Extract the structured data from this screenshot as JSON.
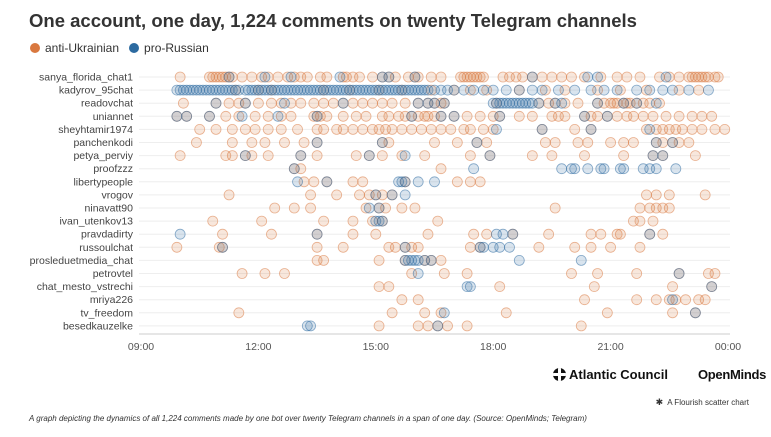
{
  "chart_data": {
    "type": "scatter",
    "title": "One account, one day, 1,224 comments on twenty Telegram channels",
    "legend": [
      {
        "name": "anti-Ukrainian",
        "color": "#d9783f"
      },
      {
        "name": "pro-Russian",
        "color": "#2c6aa0"
      }
    ],
    "channels": [
      "sanya_florida_chat1",
      "kadyrov_95chat",
      "readovchat",
      "uniannet",
      "sheyhtamir1974",
      "panchenkodi",
      "petya_perviy",
      "proofzzz",
      "libertypeople",
      "vrogov",
      "ninavatt90",
      "ivan_utenkov13",
      "pravdadirty",
      "russoulchat",
      "prosleduetmedia_chat",
      "petrovtel",
      "chat_mesto_vstrechi",
      "mriya226",
      "tv_freedom",
      "besedkauzelke"
    ],
    "x_ticks": [
      "09:00",
      "12:00",
      "15:00",
      "18:00",
      "21:00",
      "00:00"
    ],
    "xlim": [
      "09:00",
      "00:00"
    ],
    "series": [
      {
        "name": "anti-Ukrainian",
        "points": [
          {
            "channel": "sanya_florida_chat1",
            "times": [
              "10:00",
              "10:45",
              "10:50",
              "10:55",
              "11:00",
              "11:05",
              "11:10",
              "11:15",
              "11:20",
              "11:35",
              "11:50",
              "12:05",
              "12:15",
              "12:30",
              "12:45",
              "12:55",
              "13:05",
              "13:15",
              "13:35",
              "13:45",
              "14:10",
              "14:15",
              "14:25",
              "14:35",
              "14:55",
              "15:10",
              "15:20",
              "15:30",
              "15:50",
              "16:00",
              "16:05",
              "16:25",
              "16:40",
              "17:10",
              "17:15",
              "17:20",
              "17:25",
              "17:30",
              "17:35",
              "17:40",
              "17:45",
              "18:15",
              "18:25",
              "18:35",
              "18:45",
              "19:00",
              "19:15",
              "19:30",
              "19:45",
              "20:00",
              "20:20",
              "20:45",
              "21:10",
              "21:25",
              "21:45",
              "22:15",
              "22:30",
              "22:45",
              "23:00",
              "23:05",
              "23:10",
              "23:15",
              "23:20",
              "23:25",
              "23:30",
              "23:40",
              "23:45"
            ]
          },
          {
            "channel": "kadyrov_95chat",
            "times": [
              "11:25",
              "12:00",
              "12:20",
              "13:40",
              "14:20",
              "15:05",
              "15:40",
              "16:25",
              "17:00",
              "17:25",
              "17:50",
              "18:40",
              "19:20",
              "19:50",
              "20:40",
              "21:15",
              "21:55",
              "22:45",
              "23:15"
            ]
          },
          {
            "channel": "readovchat",
            "times": [
              "10:05",
              "10:55",
              "11:15",
              "11:30",
              "11:40",
              "12:00",
              "12:20",
              "12:35",
              "12:50",
              "13:05",
              "13:25",
              "13:40",
              "13:55",
              "14:10",
              "14:25",
              "14:40",
              "14:55",
              "15:10",
              "15:25",
              "15:45",
              "16:05",
              "16:20",
              "16:30",
              "16:40",
              "16:45",
              "18:05",
              "19:10",
              "19:25",
              "19:35",
              "19:50",
              "20:10",
              "20:40",
              "20:50",
              "21:00",
              "21:05",
              "21:10",
              "21:20",
              "21:25",
              "21:30",
              "21:40",
              "21:50",
              "22:00",
              "22:15"
            ]
          },
          {
            "channel": "uniannet",
            "times": [
              "9:55",
              "10:10",
              "10:45",
              "11:10",
              "11:30",
              "11:55",
              "12:15",
              "12:35",
              "12:50",
              "13:25",
              "13:30",
              "13:35",
              "13:45",
              "14:10",
              "14:30",
              "14:45",
              "15:10",
              "15:20",
              "15:35",
              "15:45",
              "15:55",
              "16:05",
              "16:15",
              "16:20",
              "16:30",
              "16:40",
              "17:00",
              "17:20",
              "17:40",
              "18:00",
              "18:10",
              "18:40",
              "19:00",
              "19:30",
              "19:40",
              "19:50",
              "20:20",
              "20:30",
              "20:40",
              "20:55",
              "21:10",
              "21:25",
              "21:35",
              "21:50",
              "22:05",
              "22:25",
              "22:45",
              "23:05",
              "23:20",
              "23:35"
            ]
          },
          {
            "channel": "sheyhtamir1974",
            "times": [
              "10:30",
              "10:55",
              "11:20",
              "11:40",
              "11:55",
              "12:15",
              "12:35",
              "13:00",
              "13:30",
              "13:40",
              "14:00",
              "14:10",
              "14:25",
              "14:40",
              "14:55",
              "15:05",
              "15:15",
              "15:25",
              "15:40",
              "15:55",
              "16:10",
              "16:25",
              "16:40",
              "16:55",
              "17:15",
              "17:25",
              "17:45",
              "18:00",
              "19:15",
              "20:05",
              "20:30",
              "21:55",
              "22:10",
              "22:20",
              "22:30",
              "22:40",
              "22:50",
              "23:05",
              "23:20",
              "23:40",
              "23:55"
            ]
          },
          {
            "channel": "panchenkodi",
            "times": [
              "10:25",
              "11:20",
              "11:50",
              "12:10",
              "12:40",
              "13:10",
              "13:30",
              "15:10",
              "15:20",
              "16:30",
              "17:05",
              "17:35",
              "17:50",
              "19:20",
              "19:35",
              "20:10",
              "20:25",
              "21:00",
              "21:20",
              "21:35",
              "22:10",
              "22:20",
              "22:35",
              "22:45",
              "23:00"
            ]
          },
          {
            "channel": "petya_perviy",
            "times": [
              "10:00",
              "11:10",
              "11:20",
              "11:40",
              "11:50",
              "12:15",
              "13:05",
              "13:30",
              "14:30",
              "14:50",
              "15:10",
              "15:40",
              "16:15",
              "17:25",
              "17:55",
              "19:00",
              "19:30",
              "20:20",
              "21:20",
              "22:05",
              "22:20",
              "23:10"
            ]
          },
          {
            "channel": "proofzzz",
            "times": [
              "12:55",
              "13:05",
              "16:40"
            ]
          },
          {
            "channel": "libertypeople",
            "times": [
              "13:10",
              "13:25",
              "13:45",
              "14:25",
              "14:40",
              "15:45",
              "17:05",
              "17:25",
              "17:40"
            ]
          },
          {
            "channel": "vrogov",
            "times": [
              "11:15",
              "13:20",
              "14:00",
              "14:35",
              "14:50",
              "15:00",
              "15:10",
              "15:25",
              "21:55",
              "22:10",
              "22:30",
              "23:25"
            ]
          },
          {
            "channel": "ninavatt90",
            "times": [
              "12:25",
              "12:55",
              "13:20",
              "14:45",
              "15:05",
              "15:15",
              "15:40",
              "16:00",
              "19:35",
              "21:45",
              "22:00",
              "22:10",
              "22:20",
              "22:30"
            ]
          },
          {
            "channel": "ivan_utenkov13",
            "times": [
              "10:50",
              "12:05",
              "13:40",
              "14:25",
              "14:55",
              "15:10",
              "16:35",
              "21:35",
              "21:45",
              "22:05"
            ]
          },
          {
            "channel": "pravdadirty",
            "times": [
              "11:05",
              "12:20",
              "13:30",
              "14:25",
              "15:00",
              "16:20",
              "17:30",
              "17:50",
              "18:30",
              "19:25",
              "20:30",
              "20:45",
              "21:10",
              "21:15",
              "22:00",
              "22:20"
            ]
          },
          {
            "channel": "russoulchat",
            "times": [
              "9:55",
              "11:00",
              "11:05",
              "13:30",
              "14:10",
              "15:20",
              "15:30",
              "15:45",
              "15:55",
              "16:05",
              "17:25",
              "17:40",
              "19:10",
              "20:05",
              "20:30",
              "21:00",
              "21:45"
            ]
          },
          {
            "channel": "prosleduetmedia_chat",
            "times": [
              "13:30",
              "13:40",
              "15:05",
              "15:45",
              "16:15",
              "16:25",
              "16:40"
            ]
          },
          {
            "channel": "petrovtel",
            "times": [
              "11:35",
              "12:10",
              "12:40",
              "15:55",
              "16:45",
              "17:20",
              "20:00",
              "20:40",
              "21:40",
              "22:45",
              "23:30",
              "23:40"
            ]
          },
          {
            "channel": "chat_mesto_vstrechi",
            "times": [
              "15:05",
              "15:20",
              "18:10",
              "20:35",
              "22:35",
              "23:35"
            ]
          },
          {
            "channel": "mriya226",
            "times": [
              "15:40",
              "16:05",
              "20:20",
              "21:40",
              "22:10",
              "22:30",
              "22:40",
              "22:55",
              "23:15",
              "23:25"
            ]
          },
          {
            "channel": "tv_freedom",
            "times": [
              "11:30",
              "15:25",
              "16:15",
              "16:40",
              "18:20",
              "20:55",
              "22:35",
              "23:10"
            ]
          },
          {
            "channel": "besedkauzelke",
            "times": [
              "15:05",
              "16:05",
              "16:20",
              "16:35",
              "16:50",
              "17:20",
              "20:15"
            ]
          }
        ]
      },
      {
        "name": "pro-Russian",
        "points": [
          {
            "channel": "sanya_florida_chat1",
            "times": [
              "11:15",
              "12:10",
              "12:50",
              "14:05",
              "15:10",
              "15:20",
              "16:00",
              "19:00",
              "20:25",
              "20:40",
              "22:25"
            ]
          },
          {
            "channel": "kadyrov_95chat",
            "times": [
              "9:55",
              "10:00",
              "10:05",
              "10:10",
              "10:15",
              "10:20",
              "10:25",
              "10:30",
              "10:35",
              "10:40",
              "10:45",
              "10:50",
              "10:55",
              "11:00",
              "11:05",
              "11:10",
              "11:15",
              "11:20",
              "11:25",
              "11:30",
              "11:40",
              "11:45",
              "11:50",
              "11:55",
              "12:00",
              "12:05",
              "12:10",
              "12:15",
              "12:20",
              "12:25",
              "12:30",
              "12:35",
              "12:40",
              "12:45",
              "12:50",
              "12:55",
              "13:00",
              "13:05",
              "13:10",
              "13:15",
              "13:20",
              "13:25",
              "13:30",
              "13:35",
              "13:40",
              "13:45",
              "13:50",
              "13:55",
              "14:00",
              "14:05",
              "14:10",
              "14:15",
              "14:20",
              "14:25",
              "14:30",
              "14:35",
              "14:40",
              "14:45",
              "14:50",
              "14:55",
              "15:00",
              "15:05",
              "15:10",
              "15:15",
              "15:20",
              "15:25",
              "15:30",
              "15:35",
              "15:40",
              "15:45",
              "15:50",
              "15:55",
              "16:00",
              "16:05",
              "16:10",
              "16:15",
              "16:20",
              "16:30",
              "16:40",
              "16:50",
              "17:00",
              "17:15",
              "17:30",
              "17:45",
              "18:00",
              "18:20",
              "18:40",
              "19:00",
              "19:15",
              "19:40",
              "20:05",
              "20:30",
              "20:50",
              "21:10",
              "21:40",
              "22:00",
              "22:20",
              "22:35",
              "23:00",
              "23:30"
            ]
          },
          {
            "channel": "readovchat",
            "times": [
              "10:55",
              "11:40",
              "12:40",
              "14:10",
              "16:05",
              "16:20",
              "16:30",
              "16:45",
              "18:00",
              "18:05",
              "18:10",
              "18:15",
              "18:20",
              "18:25",
              "18:30",
              "18:35",
              "18:40",
              "18:45",
              "18:50",
              "18:55",
              "19:00",
              "19:10",
              "19:35",
              "19:45",
              "20:40",
              "21:20",
              "21:40",
              "22:10"
            ]
          },
          {
            "channel": "uniannet",
            "times": [
              "9:55",
              "10:10",
              "10:45",
              "11:35",
              "12:30",
              "13:30",
              "15:55",
              "16:40",
              "17:00",
              "18:10",
              "20:20",
              "20:55"
            ]
          },
          {
            "channel": "sheyhtamir1974",
            "times": [
              "18:05",
              "19:15",
              "20:30",
              "22:00"
            ]
          },
          {
            "channel": "panchenkodi",
            "times": [
              "13:30",
              "15:10",
              "17:35",
              "22:10",
              "22:35"
            ]
          },
          {
            "channel": "petya_perviy",
            "times": [
              "11:40",
              "13:05",
              "14:50",
              "15:45",
              "17:55",
              "22:05",
              "22:20"
            ]
          },
          {
            "channel": "proofzzz",
            "times": [
              "12:55",
              "17:30",
              "19:45",
              "20:00",
              "20:05",
              "20:25",
              "20:45",
              "20:50",
              "21:15",
              "21:20",
              "21:50",
              "22:00",
              "22:10",
              "22:40"
            ]
          },
          {
            "channel": "libertypeople",
            "times": [
              "13:00",
              "13:45",
              "15:35",
              "15:40",
              "15:45",
              "16:05",
              "16:30"
            ]
          },
          {
            "channel": "vrogov",
            "times": [
              "15:00",
              "15:25",
              "15:45"
            ]
          },
          {
            "channel": "ninavatt90",
            "times": [
              "14:50",
              "15:05"
            ]
          },
          {
            "channel": "ivan_utenkov13",
            "times": [
              "15:00",
              "15:05",
              "15:10"
            ]
          },
          {
            "channel": "pravdadirty",
            "times": [
              "10:00",
              "13:30",
              "18:05",
              "18:15",
              "18:30",
              "22:00"
            ]
          },
          {
            "channel": "russoulchat",
            "times": [
              "11:05",
              "15:45",
              "17:40",
              "17:45",
              "18:00",
              "18:10",
              "18:25"
            ]
          },
          {
            "channel": "prosleduetmedia_chat",
            "times": [
              "15:45",
              "15:50",
              "15:55",
              "16:00",
              "16:05",
              "16:15",
              "16:25",
              "18:40",
              "20:15"
            ]
          },
          {
            "channel": "petrovtel",
            "times": [
              "16:05",
              "22:45"
            ]
          },
          {
            "channel": "chat_mesto_vstrechi",
            "times": [
              "17:20",
              "17:25",
              "23:35"
            ]
          },
          {
            "channel": "mriya226",
            "times": [
              "22:35"
            ]
          },
          {
            "channel": "tv_freedom",
            "times": [
              "16:45",
              "23:10"
            ]
          },
          {
            "channel": "besedkauzelke",
            "times": [
              "13:15",
              "13:20",
              "16:35"
            ]
          }
        ]
      }
    ]
  },
  "logos": {
    "atlantic_council": "Atlantic Council",
    "openminds": "OpenMinds"
  },
  "attribution": "A Flourish scatter chart",
  "caption": "A graph depicting the dynamics of all 1,224 comments made by one bot over twenty Telegram channels in a span of one day. (Source: OpenMinds; Telegram)"
}
